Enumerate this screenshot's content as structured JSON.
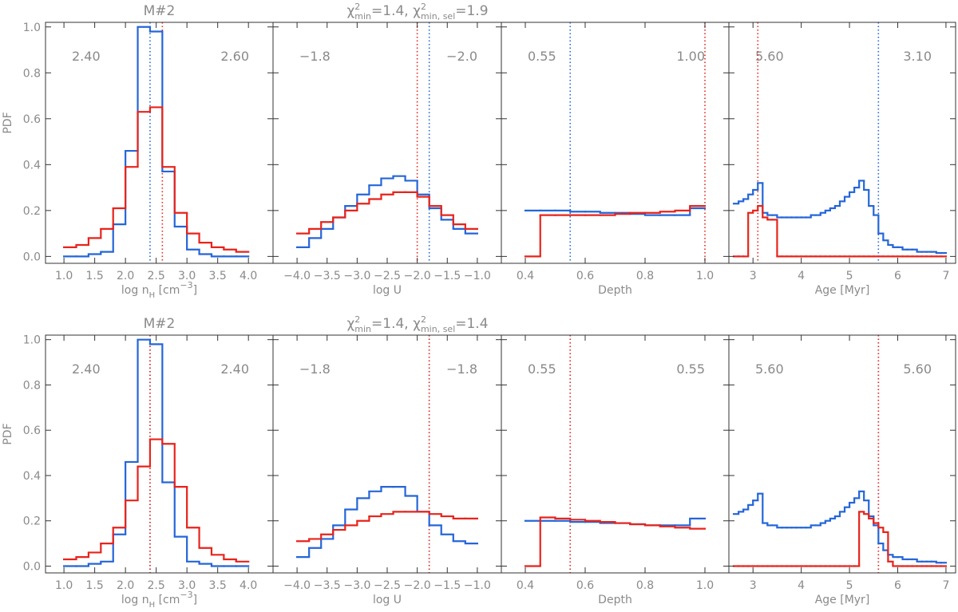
{
  "chart_data": [
    {
      "type": "histogram",
      "title": [
        {
          "text": "M#2"
        }
      ],
      "ylabel": "PDF",
      "xlabel": [
        {
          "text": "log n"
        },
        {
          "text": "H",
          "shift": "sub"
        },
        {
          "text": " [cm"
        },
        {
          "text": "−3",
          "shift": "sup"
        },
        {
          "text": "]"
        }
      ],
      "bins": [
        1.0,
        1.2,
        1.4,
        1.6,
        1.8,
        2.0,
        2.2,
        2.4,
        2.6,
        2.8,
        3.0,
        3.2,
        3.4,
        3.6,
        3.8,
        4.0
      ],
      "series": [
        {
          "color": "#2466d8",
          "values": [
            0.0,
            0.0,
            0.01,
            0.02,
            0.14,
            0.46,
            1.0,
            0.98,
            0.37,
            0.13,
            0.03,
            0.01,
            0.0,
            0.0,
            0.0
          ],
          "marker": {
            "value": 2.4,
            "label": "2.40"
          }
        },
        {
          "color": "#e8231b",
          "values": [
            0.04,
            0.05,
            0.08,
            0.12,
            0.21,
            0.39,
            0.63,
            0.65,
            0.39,
            0.19,
            0.1,
            0.06,
            0.04,
            0.03,
            0.02
          ],
          "marker": {
            "value": 2.6,
            "label": "2.60"
          }
        }
      ],
      "xlim": [
        0.7,
        4.4
      ],
      "ylim": [
        -0.03,
        1.02
      ],
      "xticks": [
        {
          "value": 1,
          "label": "1.0"
        },
        1.5,
        {
          "value": 2,
          "label": "2.0"
        },
        2.5,
        {
          "value": 3,
          "label": "3.0"
        },
        3.5,
        {
          "value": 4,
          "label": "4.0"
        }
      ],
      "yticks": [
        {
          "value": 0,
          "label": "0.0"
        },
        0.2,
        0.4,
        0.6,
        0.8,
        {
          "value": 1,
          "label": "1.0"
        }
      ]
    },
    {
      "type": "histogram",
      "title": [
        {
          "text": "χ"
        },
        {
          "text": "2",
          "shift": "sup"
        },
        {
          "text": "min",
          "shift": "subback"
        },
        {
          "text": "=1.4, χ"
        },
        {
          "text": "2",
          "shift": "sup"
        },
        {
          "text": "min, sel",
          "shift": "subback"
        },
        {
          "text": "=1.9"
        }
      ],
      "xlabel": [
        {
          "text": "log U"
        }
      ],
      "bins": [
        -4.0,
        -3.8,
        -3.6,
        -3.4,
        -3.2,
        -3.0,
        -2.8,
        -2.6,
        -2.4,
        -2.2,
        -2.0,
        -1.8,
        -1.6,
        -1.4,
        -1.2,
        -1.0
      ],
      "series": [
        {
          "color": "#2466d8",
          "values": [
            0.04,
            0.08,
            0.12,
            0.17,
            0.22,
            0.27,
            0.31,
            0.34,
            0.35,
            0.33,
            0.27,
            0.21,
            0.16,
            0.12,
            0.1
          ],
          "marker": {
            "value": -1.8,
            "label": "−1.8"
          }
        },
        {
          "color": "#e8231b",
          "values": [
            0.1,
            0.12,
            0.15,
            0.17,
            0.2,
            0.23,
            0.25,
            0.27,
            0.28,
            0.28,
            0.26,
            0.22,
            0.18,
            0.14,
            0.12
          ],
          "marker": {
            "value": -2.0,
            "label": "−2.0"
          }
        }
      ],
      "xlim": [
        -4.4,
        -0.6
      ],
      "ylim": [
        -0.03,
        1.02
      ],
      "xticks": [
        {
          "value": -4,
          "label": "−4.0"
        },
        {
          "value": -3.5,
          "label": "−3.5"
        },
        {
          "value": -3,
          "label": "−3.0"
        },
        {
          "value": -2.5,
          "label": "−2.5"
        },
        {
          "value": -2,
          "label": "−2.0"
        },
        {
          "value": -1.5,
          "label": "−1.5"
        },
        {
          "value": -1,
          "label": "−1.0"
        }
      ]
    },
    {
      "type": "histogram",
      "xlabel": [
        {
          "text": "Depth"
        }
      ],
      "bins": [
        0.4,
        0.45,
        0.5,
        0.55,
        0.6,
        0.65,
        0.7,
        0.75,
        0.8,
        0.85,
        0.9,
        0.95,
        1.0
      ],
      "series": [
        {
          "color": "#2466d8",
          "values": [
            0.2,
            0.2,
            0.2,
            0.195,
            0.195,
            0.19,
            0.19,
            0.185,
            0.18,
            0.18,
            0.18,
            0.21
          ],
          "marker": {
            "value": 0.55,
            "label": "0.55"
          }
        },
        {
          "color": "#e8231b",
          "values": [
            0.0,
            0.18,
            0.18,
            0.18,
            0.18,
            0.18,
            0.185,
            0.19,
            0.19,
            0.195,
            0.2,
            0.22
          ],
          "marker": {
            "value": 1.0,
            "label": "1.00"
          }
        }
      ],
      "xlim": [
        0.32,
        1.08
      ],
      "ylim": [
        -0.03,
        1.02
      ],
      "xticks": [
        0.4,
        0.6,
        0.8,
        {
          "value": 1,
          "label": "1.0"
        }
      ]
    },
    {
      "type": "histogram",
      "xlabel": [
        {
          "text": "Age [Myr]"
        }
      ],
      "bins": [
        2.6,
        2.7,
        2.8,
        2.9,
        3.0,
        3.1,
        3.2,
        3.3,
        3.4,
        3.5,
        3.6,
        3.7,
        3.8,
        3.9,
        4.0,
        4.1,
        4.2,
        4.3,
        4.4,
        4.5,
        4.6,
        4.7,
        4.8,
        4.9,
        5.0,
        5.1,
        5.2,
        5.3,
        5.4,
        5.5,
        5.6,
        5.7,
        5.8,
        5.9,
        6.0,
        6.1,
        6.2,
        6.3,
        6.4,
        6.5,
        6.6,
        6.7,
        6.8,
        6.9,
        7.0
      ],
      "series": [
        {
          "color": "#2466d8",
          "values": [
            0.23,
            0.24,
            0.25,
            0.27,
            0.29,
            0.32,
            0.19,
            0.18,
            0.18,
            0.17,
            0.17,
            0.17,
            0.17,
            0.17,
            0.17,
            0.17,
            0.18,
            0.18,
            0.19,
            0.2,
            0.21,
            0.22,
            0.24,
            0.26,
            0.28,
            0.3,
            0.33,
            0.29,
            0.22,
            0.18,
            0.1,
            0.07,
            0.05,
            0.04,
            0.04,
            0.03,
            0.03,
            0.03,
            0.02,
            0.02,
            0.02,
            0.02,
            0.015,
            0.015
          ],
          "marker": {
            "value": 5.6,
            "label": "5.60"
          }
        },
        {
          "color": "#e8231b",
          "values": [
            0.0,
            0.0,
            0.0,
            0.19,
            0.2,
            0.22,
            0.17,
            0.16,
            0.16,
            0.0,
            0.0,
            0.0,
            0.0,
            0.0,
            0.0,
            0.0,
            0.0,
            0.0,
            0.0,
            0.0,
            0.0,
            0.0,
            0.0,
            0.0,
            0.0,
            0.0,
            0.0,
            0.0,
            0.0,
            0.0,
            0.0,
            0.0,
            0.0,
            0.0,
            0.0,
            0.0,
            0.0,
            0.0,
            0.0,
            0.0,
            0.0,
            0.0,
            0.0,
            0.0
          ],
          "marker": {
            "value": 3.1,
            "label": "3.10"
          }
        }
      ],
      "xlim": [
        2.5,
        7.2
      ],
      "ylim": [
        -0.03,
        1.02
      ],
      "xticks": [
        3,
        4,
        5,
        6,
        7
      ]
    },
    {
      "type": "histogram",
      "title": [
        {
          "text": "M#2"
        }
      ],
      "ylabel": "PDF",
      "xlabel": [
        {
          "text": "log n"
        },
        {
          "text": "H",
          "shift": "sub"
        },
        {
          "text": " [cm"
        },
        {
          "text": "−3",
          "shift": "sup"
        },
        {
          "text": "]"
        }
      ],
      "bins": [
        1.0,
        1.2,
        1.4,
        1.6,
        1.8,
        2.0,
        2.2,
        2.4,
        2.6,
        2.8,
        3.0,
        3.2,
        3.4,
        3.6,
        3.8,
        4.0
      ],
      "series": [
        {
          "color": "#2466d8",
          "values": [
            0.0,
            0.0,
            0.01,
            0.02,
            0.14,
            0.46,
            1.0,
            0.98,
            0.37,
            0.13,
            0.02,
            0.01,
            0.0,
            0.0,
            0.0
          ],
          "marker": {
            "value": 2.4,
            "label": "2.40"
          }
        },
        {
          "color": "#e8231b",
          "values": [
            0.03,
            0.04,
            0.06,
            0.1,
            0.17,
            0.29,
            0.44,
            0.56,
            0.54,
            0.35,
            0.17,
            0.08,
            0.05,
            0.03,
            0.02
          ],
          "marker": {
            "value": 2.4,
            "label": "2.40"
          }
        }
      ],
      "xlim": [
        0.7,
        4.4
      ],
      "ylim": [
        -0.03,
        1.02
      ],
      "xticks": [
        {
          "value": 1,
          "label": "1.0"
        },
        1.5,
        {
          "value": 2,
          "label": "2.0"
        },
        2.5,
        {
          "value": 3,
          "label": "3.0"
        },
        3.5,
        {
          "value": 4,
          "label": "4.0"
        }
      ],
      "yticks": [
        {
          "value": 0,
          "label": "0.0"
        },
        0.2,
        0.4,
        0.6,
        0.8,
        {
          "value": 1,
          "label": "1.0"
        }
      ]
    },
    {
      "type": "histogram",
      "title": [
        {
          "text": "χ"
        },
        {
          "text": "2",
          "shift": "sup"
        },
        {
          "text": "min",
          "shift": "subback"
        },
        {
          "text": "=1.4, χ"
        },
        {
          "text": "2",
          "shift": "sup"
        },
        {
          "text": "min, sel",
          "shift": "subback"
        },
        {
          "text": "=1.4"
        }
      ],
      "xlabel": [
        {
          "text": "log U"
        }
      ],
      "bins": [
        -4.0,
        -3.8,
        -3.6,
        -3.4,
        -3.2,
        -3.0,
        -2.8,
        -2.6,
        -2.4,
        -2.2,
        -2.0,
        -1.8,
        -1.6,
        -1.4,
        -1.2,
        -1.0
      ],
      "series": [
        {
          "color": "#2466d8",
          "values": [
            0.04,
            0.08,
            0.12,
            0.18,
            0.25,
            0.3,
            0.33,
            0.35,
            0.35,
            0.31,
            0.24,
            0.18,
            0.14,
            0.11,
            0.1
          ],
          "marker": {
            "value": -1.8,
            "label": "−1.8"
          }
        },
        {
          "color": "#e8231b",
          "values": [
            0.11,
            0.12,
            0.14,
            0.16,
            0.18,
            0.2,
            0.22,
            0.23,
            0.24,
            0.24,
            0.24,
            0.23,
            0.22,
            0.21,
            0.21
          ],
          "marker": {
            "value": -1.8,
            "label": "−1.8"
          }
        }
      ],
      "xlim": [
        -4.4,
        -0.6
      ],
      "ylim": [
        -0.03,
        1.02
      ],
      "xticks": [
        {
          "value": -4,
          "label": "−4.0"
        },
        {
          "value": -3.5,
          "label": "−3.5"
        },
        {
          "value": -3,
          "label": "−3.0"
        },
        {
          "value": -2.5,
          "label": "−2.5"
        },
        {
          "value": -2,
          "label": "−2.0"
        },
        {
          "value": -1.5,
          "label": "−1.5"
        },
        {
          "value": -1,
          "label": "−1.0"
        }
      ]
    },
    {
      "type": "histogram",
      "xlabel": [
        {
          "text": "Depth"
        }
      ],
      "bins": [
        0.4,
        0.45,
        0.5,
        0.55,
        0.6,
        0.65,
        0.7,
        0.75,
        0.8,
        0.85,
        0.9,
        0.95,
        1.0
      ],
      "series": [
        {
          "color": "#2466d8",
          "values": [
            0.2,
            0.2,
            0.2,
            0.195,
            0.195,
            0.19,
            0.19,
            0.185,
            0.18,
            0.18,
            0.18,
            0.21
          ],
          "marker": {
            "value": 0.55,
            "label": "0.55"
          }
        },
        {
          "color": "#e8231b",
          "values": [
            0.0,
            0.215,
            0.21,
            0.205,
            0.2,
            0.195,
            0.19,
            0.185,
            0.18,
            0.175,
            0.17,
            0.165
          ],
          "marker": {
            "value": 0.55,
            "label": "0.55"
          }
        }
      ],
      "xlim": [
        0.32,
        1.08
      ],
      "ylim": [
        -0.03,
        1.02
      ],
      "xticks": [
        0.4,
        0.6,
        0.8,
        {
          "value": 1,
          "label": "1.0"
        }
      ]
    },
    {
      "type": "histogram",
      "xlabel": [
        {
          "text": "Age [Myr]"
        }
      ],
      "bins": [
        2.6,
        2.7,
        2.8,
        2.9,
        3.0,
        3.1,
        3.2,
        3.3,
        3.4,
        3.5,
        3.6,
        3.7,
        3.8,
        3.9,
        4.0,
        4.1,
        4.2,
        4.3,
        4.4,
        4.5,
        4.6,
        4.7,
        4.8,
        4.9,
        5.0,
        5.1,
        5.2,
        5.3,
        5.4,
        5.5,
        5.6,
        5.7,
        5.8,
        5.9,
        6.0,
        6.1,
        6.2,
        6.3,
        6.4,
        6.5,
        6.6,
        6.7,
        6.8,
        6.9,
        7.0
      ],
      "series": [
        {
          "color": "#2466d8",
          "values": [
            0.23,
            0.24,
            0.25,
            0.27,
            0.29,
            0.32,
            0.19,
            0.18,
            0.18,
            0.17,
            0.17,
            0.17,
            0.17,
            0.17,
            0.17,
            0.17,
            0.18,
            0.18,
            0.19,
            0.2,
            0.21,
            0.22,
            0.24,
            0.26,
            0.28,
            0.3,
            0.33,
            0.29,
            0.22,
            0.18,
            0.1,
            0.07,
            0.05,
            0.04,
            0.04,
            0.03,
            0.03,
            0.03,
            0.02,
            0.02,
            0.02,
            0.02,
            0.015,
            0.015
          ],
          "marker": {
            "value": 5.6,
            "label": "5.60"
          }
        },
        {
          "color": "#e8231b",
          "values": [
            0.0,
            0.0,
            0.0,
            0.0,
            0.0,
            0.0,
            0.0,
            0.0,
            0.0,
            0.0,
            0.0,
            0.0,
            0.0,
            0.0,
            0.0,
            0.0,
            0.0,
            0.0,
            0.0,
            0.0,
            0.0,
            0.0,
            0.0,
            0.0,
            0.0,
            0.0,
            0.24,
            0.23,
            0.21,
            0.19,
            0.17,
            0.15,
            0.02,
            0.0,
            0.0,
            0.0,
            0.0,
            0.0,
            0.0,
            0.0,
            0.0,
            0.0,
            0.0,
            0.0
          ],
          "marker": {
            "value": 5.6,
            "label": "5.60"
          }
        }
      ],
      "xlim": [
        2.5,
        7.2
      ],
      "ylim": [
        -0.03,
        1.02
      ],
      "xticks": [
        3,
        4,
        5,
        6,
        7
      ]
    }
  ]
}
